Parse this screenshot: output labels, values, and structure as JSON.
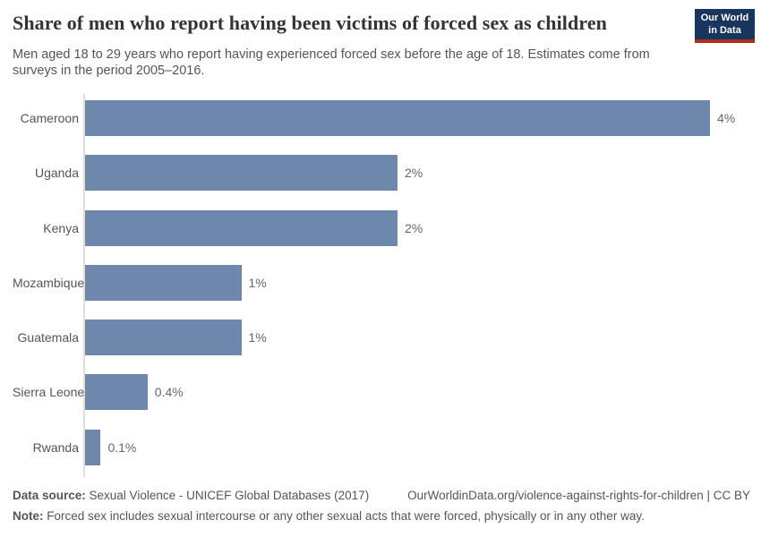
{
  "header": {
    "title": "Share of men who report having been victims of forced sex as children",
    "logo": {
      "line1": "Our World",
      "line2": "in Data"
    }
  },
  "subtitle": "Men aged 18 to 29 years who report having experienced forced sex before the age of 18. Estimates come from surveys in the period 2005–2016.",
  "chart_data": {
    "type": "bar",
    "orientation": "horizontal",
    "title": "Share of men who report having been victims of forced sex as children",
    "categories": [
      "Cameroon",
      "Uganda",
      "Kenya",
      "Mozambique",
      "Guatemala",
      "Sierra Leone",
      "Rwanda"
    ],
    "values": [
      4,
      2,
      2,
      1,
      1,
      0.4,
      0.1
    ],
    "value_labels": [
      "4%",
      "2%",
      "2%",
      "1%",
      "1%",
      "0.4%",
      "0.1%"
    ],
    "unit": "%",
    "xlim": [
      0,
      4
    ],
    "grid": false,
    "legend": "none",
    "bar_color": "#6d87ad"
  },
  "footer": {
    "datasource_label": "Data source:",
    "datasource_text": " Sexual Violence - UNICEF Global Databases (2017)",
    "link_text": "OurWorldinData.org/violence-against-rights-for-children | CC BY",
    "note_label": "Note:",
    "note_text": " Forced sex includes sexual intercourse or any other sexual acts that were forced, physically or in any other way."
  }
}
